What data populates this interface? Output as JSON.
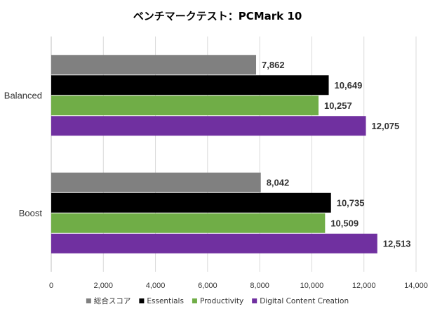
{
  "chart_data": {
    "type": "bar",
    "orientation": "horizontal",
    "title": "ベンチマークテスト：PCMark 10",
    "categories": [
      "Balanced",
      "Boost"
    ],
    "series": [
      {
        "name": "総合スコア",
        "color": "#808080",
        "values": [
          7862,
          8042
        ],
        "labels": [
          "7,862",
          "8,042"
        ]
      },
      {
        "name": "Essentials",
        "color": "#000000",
        "values": [
          10649,
          10735
        ],
        "labels": [
          "10,649",
          "10,735"
        ]
      },
      {
        "name": "Productivity",
        "color": "#70ad47",
        "values": [
          10257,
          10509
        ],
        "labels": [
          "10,257",
          "10,509"
        ]
      },
      {
        "name": "Digital Content Creation",
        "color": "#7030a0",
        "values": [
          12075,
          12513
        ],
        "labels": [
          "12,075",
          "12,513"
        ]
      }
    ],
    "xlim": [
      0,
      14000
    ],
    "xticks": [
      0,
      2000,
      4000,
      6000,
      8000,
      10000,
      12000,
      14000
    ],
    "xtick_labels": [
      "0",
      "2,000",
      "4,000",
      "6,000",
      "8,000",
      "10,000",
      "12,000",
      "14,000"
    ],
    "grid": true,
    "legend_position": "bottom",
    "xlabel": "",
    "ylabel": ""
  }
}
